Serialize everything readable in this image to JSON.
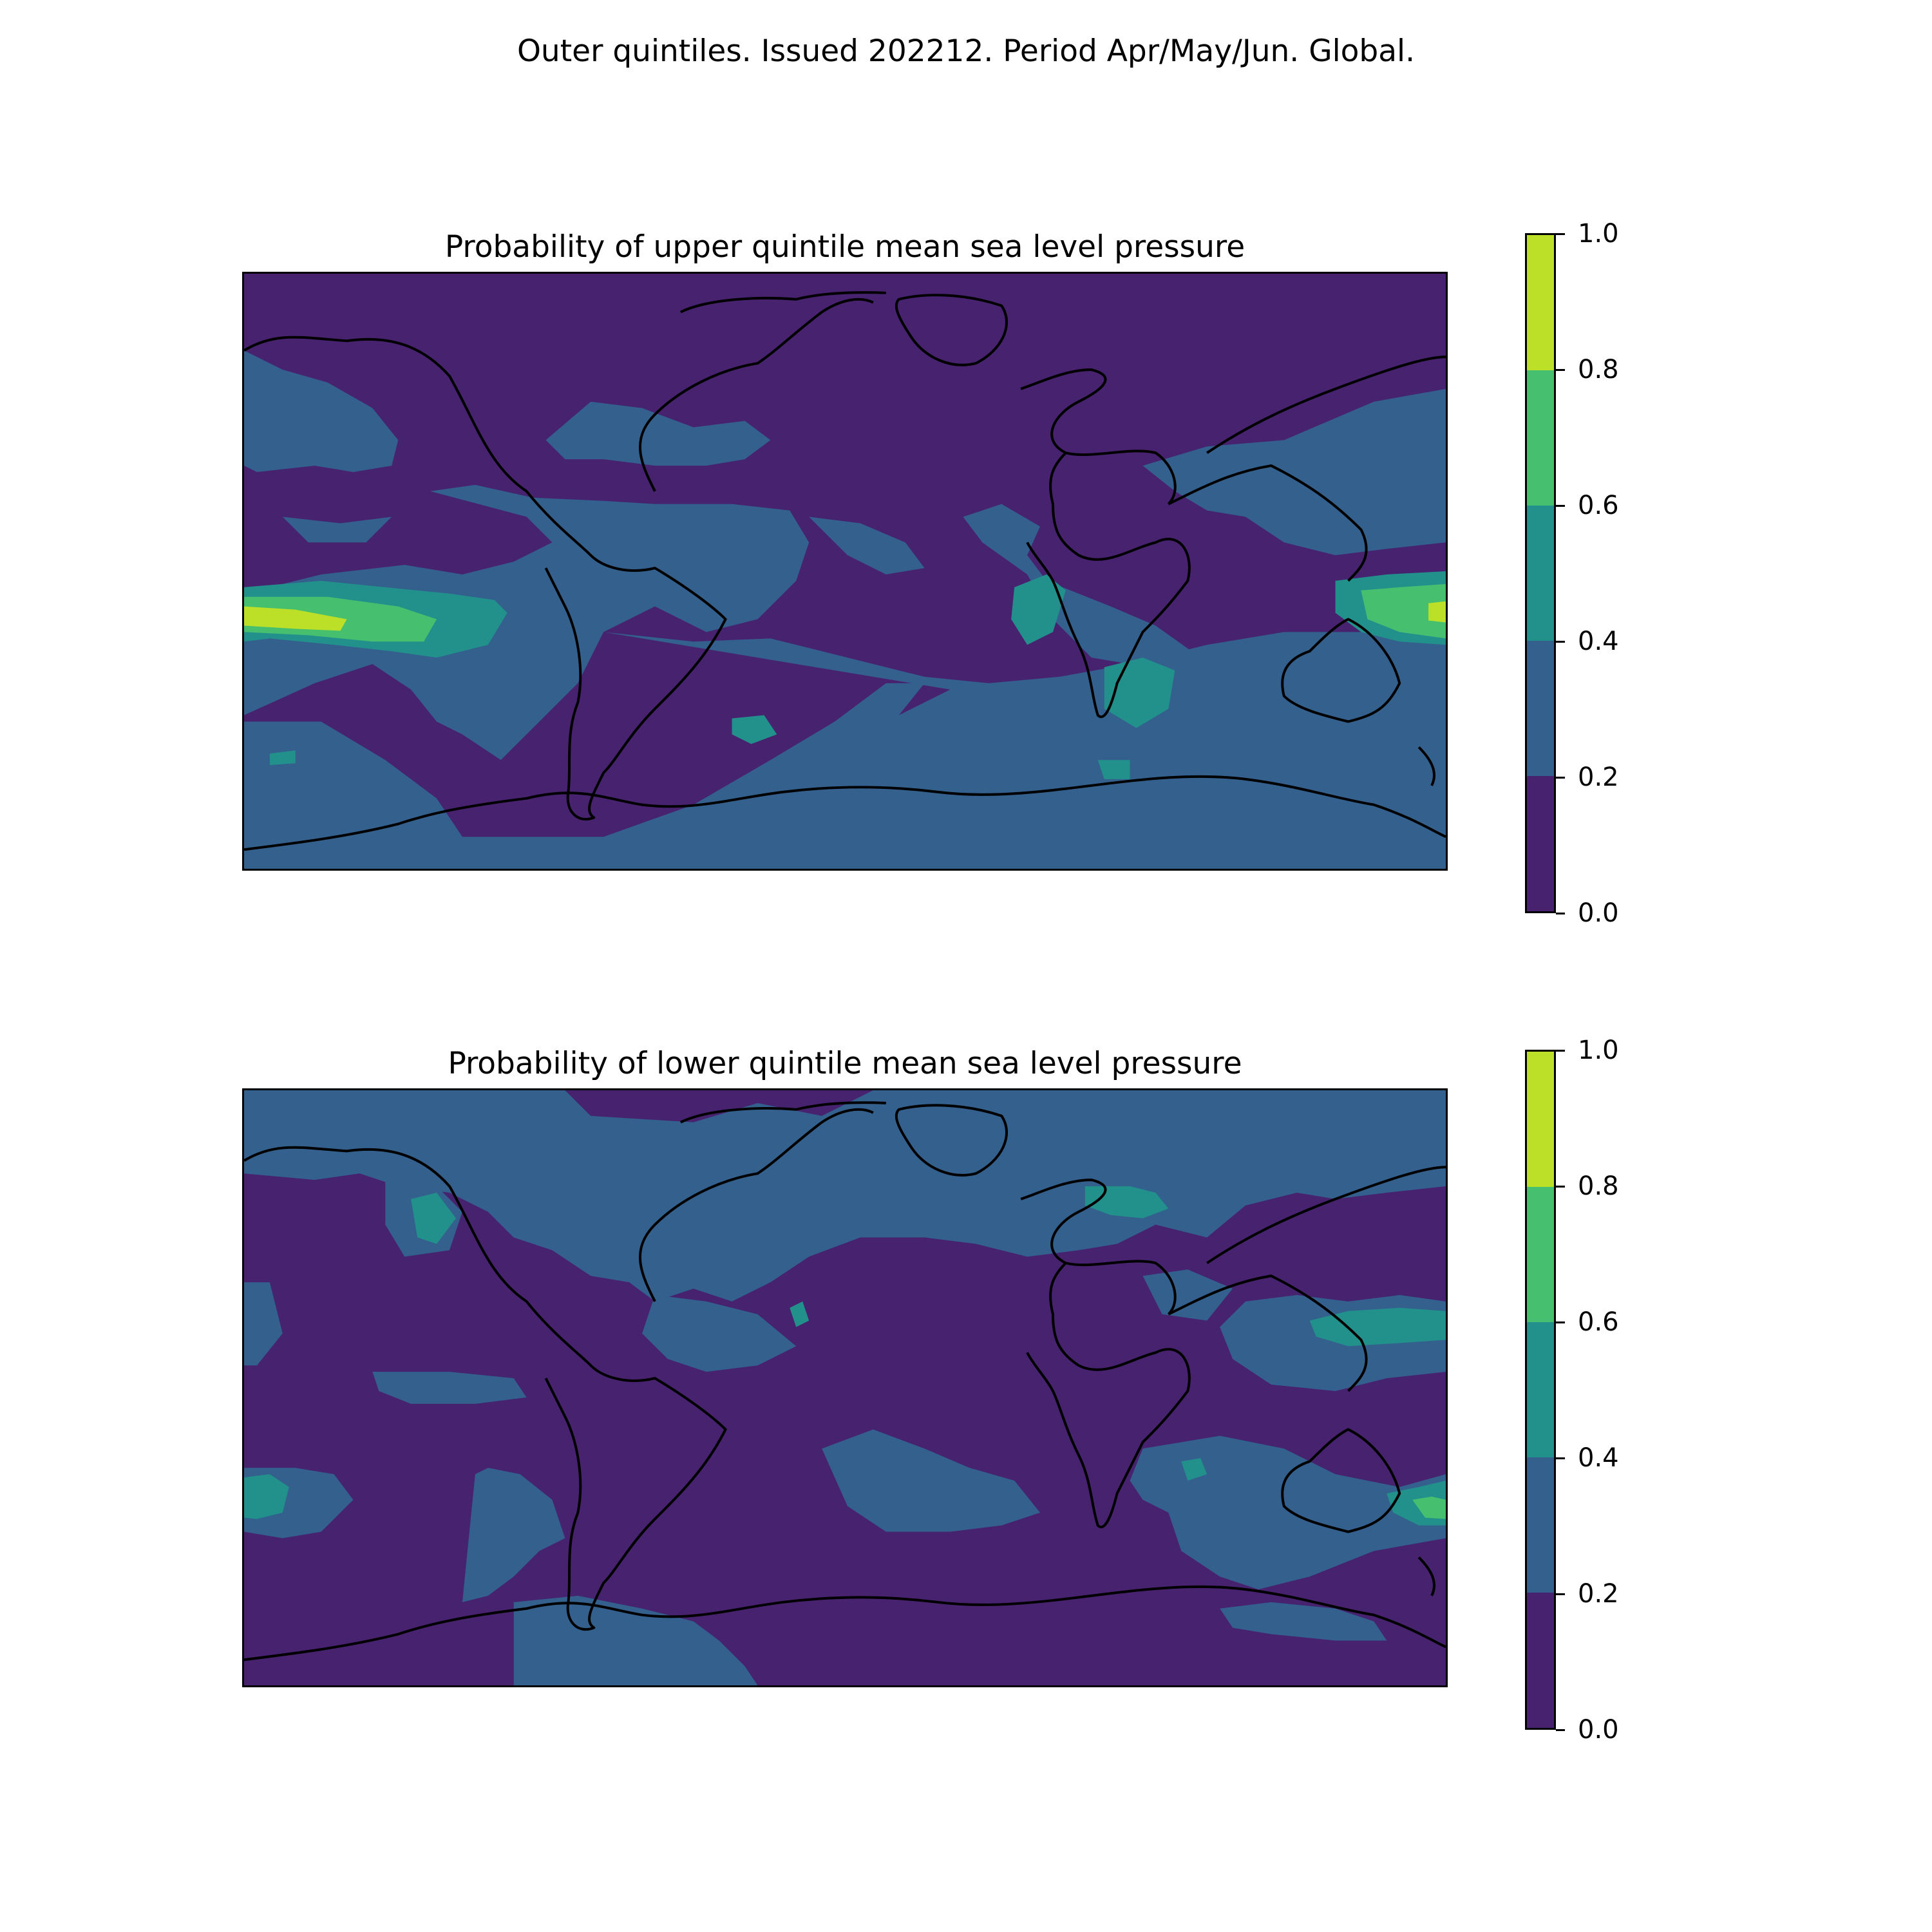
{
  "suptitle": "Outer quintiles. Issued 202212. Period Apr/May/Jun. Global.",
  "colormap": {
    "levels": [
      "0.0",
      "0.2",
      "0.4",
      "0.6",
      "0.8",
      "1.0"
    ],
    "colors": [
      "#46226f",
      "#33608d",
      "#22918b",
      "#46c06f",
      "#bcdf27"
    ]
  },
  "panels": [
    {
      "id": "upper",
      "title": "Probability of upper quintile mean sea level pressure"
    },
    {
      "id": "lower",
      "title": "Probability of lower quintile mean sea level pressure"
    }
  ]
}
